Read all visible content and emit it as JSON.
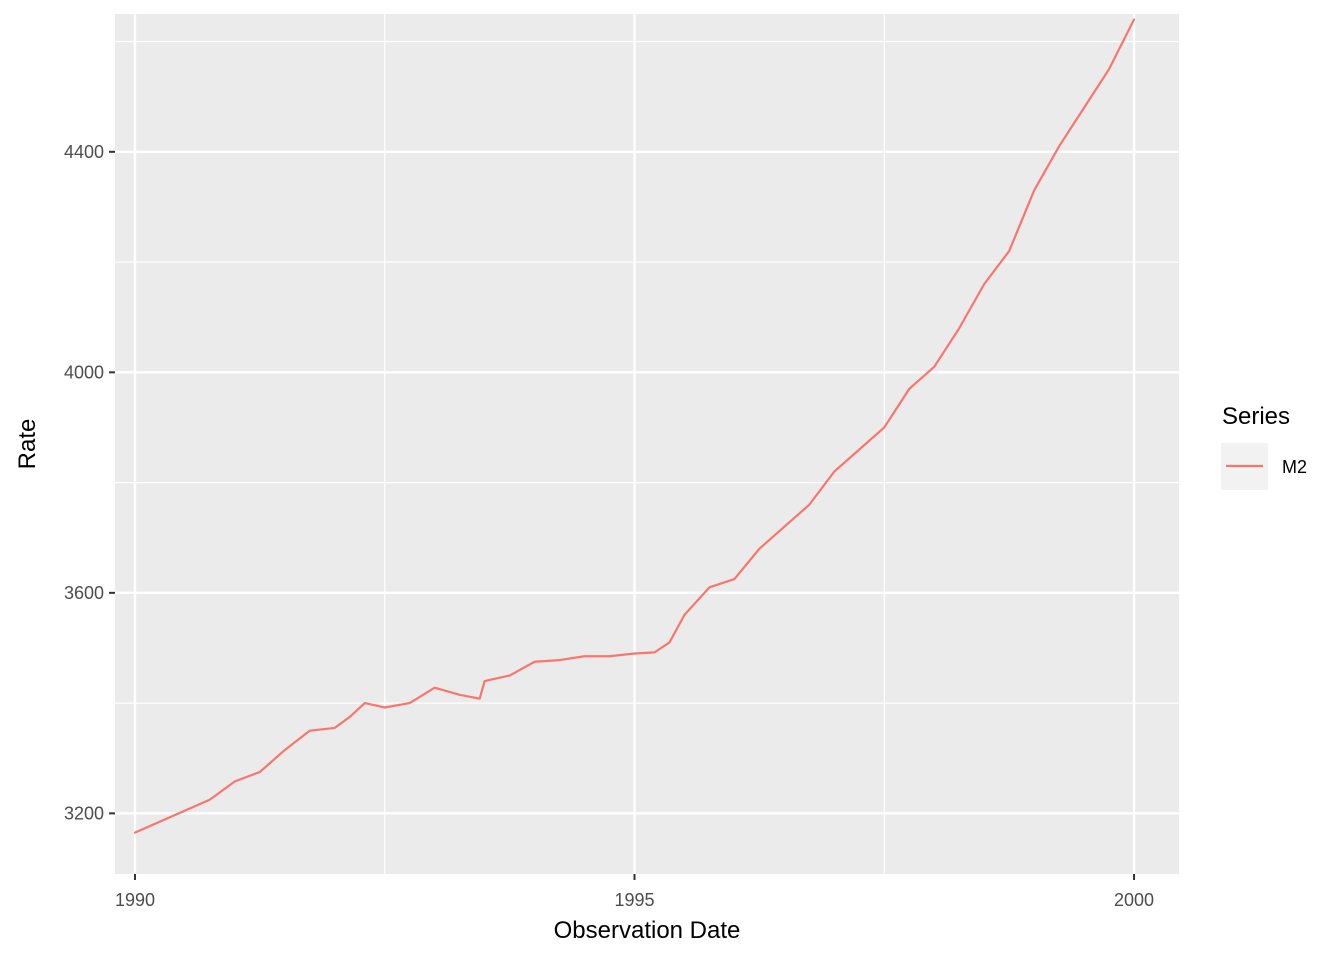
{
  "chart_data": {
    "type": "line",
    "xlabel": "Observation Date",
    "ylabel": "Rate",
    "x_range": [
      1989.8,
      2000.45
    ],
    "ylim": [
      3090,
      4650
    ],
    "x_ticks": [
      {
        "value": 1990,
        "label": "1990"
      },
      {
        "value": 1995,
        "label": "1995"
      },
      {
        "value": 2000,
        "label": "2000"
      }
    ],
    "x_minor_ticks": [
      1992.5,
      1997.5
    ],
    "y_ticks": [
      {
        "value": 3200,
        "label": "3200"
      },
      {
        "value": 3600,
        "label": "3600"
      },
      {
        "value": 4000,
        "label": "4000"
      },
      {
        "value": 4400,
        "label": "4400"
      }
    ],
    "y_minor_ticks": [
      3400,
      3800,
      4200,
      4600
    ],
    "grid": true,
    "legend": {
      "title": "Series",
      "position": "right"
    },
    "colors": {
      "panel": "#EBEBEB",
      "grid": "#FFFFFF",
      "series": "#F8766D",
      "tick": "#333333"
    },
    "series": [
      {
        "name": "M2",
        "x": [
          1990.0,
          1990.25,
          1990.5,
          1990.75,
          1991.0,
          1991.25,
          1991.5,
          1991.75,
          1992.0,
          1992.15,
          1992.3,
          1992.5,
          1992.75,
          1993.0,
          1993.25,
          1993.45,
          1993.5,
          1993.75,
          1994.0,
          1994.25,
          1994.5,
          1994.75,
          1995.0,
          1995.2,
          1995.35,
          1995.5,
          1995.75,
          1996.0,
          1996.25,
          1996.5,
          1996.75,
          1997.0,
          1997.25,
          1997.5,
          1997.75,
          1998.0,
          1998.25,
          1998.5,
          1998.75,
          1999.0,
          1999.25,
          1999.5,
          1999.75,
          2000.0
        ],
        "y": [
          3165,
          3185,
          3205,
          3225,
          3258,
          3275,
          3315,
          3350,
          3355,
          3375,
          3400,
          3392,
          3400,
          3428,
          3415,
          3408,
          3440,
          3450,
          3475,
          3478,
          3485,
          3485,
          3490,
          3492,
          3510,
          3560,
          3610,
          3625,
          3680,
          3720,
          3760,
          3820,
          3860,
          3900,
          3970,
          4010,
          4080,
          4160,
          4220,
          4330,
          4410,
          4480,
          4550,
          4640
        ]
      }
    ]
  }
}
